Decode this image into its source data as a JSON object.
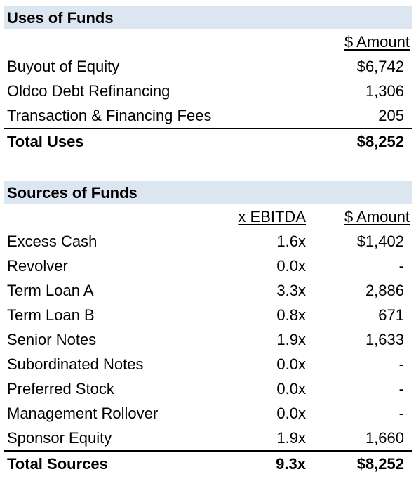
{
  "uses": {
    "title": "Uses of Funds",
    "amount_header": "$ Amount",
    "rows": [
      {
        "label": "Buyout of Equity",
        "amount": "$6,742"
      },
      {
        "label": "Oldco Debt Refinancing",
        "amount": "1,306"
      },
      {
        "label": "Transaction & Financing Fees",
        "amount": "205"
      }
    ],
    "total": {
      "label": "Total Uses",
      "amount": "$8,252"
    }
  },
  "sources": {
    "title": "Sources of Funds",
    "ebitda_header": "x EBITDA",
    "amount_header": "$ Amount",
    "rows": [
      {
        "label": "Excess Cash",
        "multiple": "1.6x",
        "amount": "$1,402"
      },
      {
        "label": "Revolver",
        "multiple": "0.0x",
        "amount": "-"
      },
      {
        "label": "Term Loan A",
        "multiple": "3.3x",
        "amount": "2,886"
      },
      {
        "label": "Term Loan B",
        "multiple": "0.8x",
        "amount": "671"
      },
      {
        "label": "Senior Notes",
        "multiple": "1.9x",
        "amount": "1,633"
      },
      {
        "label": "Subordinated Notes",
        "multiple": "0.0x",
        "amount": "-"
      },
      {
        "label": "Preferred Stock",
        "multiple": "0.0x",
        "amount": "-"
      },
      {
        "label": "Management Rollover",
        "multiple": "0.0x",
        "amount": "-"
      },
      {
        "label": "Sponsor Equity",
        "multiple": "1.9x",
        "amount": "1,660"
      }
    ],
    "total": {
      "label": "Total Sources",
      "multiple": "9.3x",
      "amount": "$8,252"
    }
  }
}
